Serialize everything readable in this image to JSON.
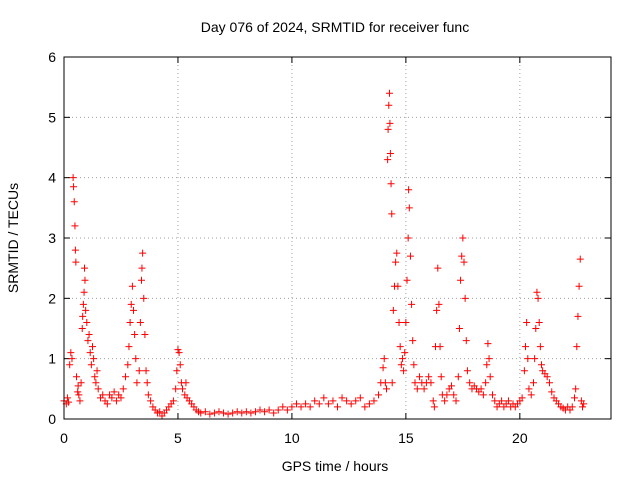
{
  "chart_data": {
    "type": "scatter",
    "title": "Day 076 of 2024, SRMTID for receiver func",
    "xlabel": "GPS time / hours",
    "ylabel": "SRMTID / TECUs",
    "xlim": [
      0,
      24
    ],
    "ylim": [
      0,
      6
    ],
    "xticks": [
      0,
      5,
      10,
      15,
      20
    ],
    "yticks": [
      0,
      1,
      2,
      3,
      4,
      5,
      6
    ],
    "grid": true,
    "marker": "plus",
    "color": "#ff0000",
    "series": [
      {
        "name": "SRMTID",
        "points": [
          [
            0.0,
            0.3
          ],
          [
            0.1,
            0.25
          ],
          [
            0.15,
            0.35
          ],
          [
            0.2,
            0.28
          ],
          [
            0.25,
            0.9
          ],
          [
            0.3,
            1.1
          ],
          [
            0.35,
            1.0
          ],
          [
            0.4,
            4.0
          ],
          [
            0.42,
            3.85
          ],
          [
            0.45,
            3.6
          ],
          [
            0.48,
            3.2
          ],
          [
            0.5,
            2.8
          ],
          [
            0.52,
            2.6
          ],
          [
            0.55,
            0.7
          ],
          [
            0.6,
            0.45
          ],
          [
            0.62,
            0.55
          ],
          [
            0.65,
            0.4
          ],
          [
            0.7,
            0.3
          ],
          [
            0.75,
            0.6
          ],
          [
            0.8,
            1.5
          ],
          [
            0.82,
            1.7
          ],
          [
            0.85,
            1.9
          ],
          [
            0.88,
            2.1
          ],
          [
            0.9,
            2.5
          ],
          [
            0.92,
            2.3
          ],
          [
            0.95,
            1.8
          ],
          [
            1.0,
            1.6
          ],
          [
            1.05,
            1.3
          ],
          [
            1.1,
            1.4
          ],
          [
            1.15,
            1.1
          ],
          [
            1.2,
            0.9
          ],
          [
            1.25,
            1.2
          ],
          [
            1.3,
            1.0
          ],
          [
            1.35,
            0.7
          ],
          [
            1.4,
            0.6
          ],
          [
            1.45,
            0.8
          ],
          [
            1.5,
            0.5
          ],
          [
            1.6,
            0.35
          ],
          [
            1.7,
            0.4
          ],
          [
            1.8,
            0.3
          ],
          [
            1.9,
            0.25
          ],
          [
            2.0,
            0.4
          ],
          [
            2.1,
            0.35
          ],
          [
            2.2,
            0.45
          ],
          [
            2.3,
            0.3
          ],
          [
            2.4,
            0.4
          ],
          [
            2.5,
            0.35
          ],
          [
            2.6,
            0.5
          ],
          [
            2.7,
            0.7
          ],
          [
            2.8,
            0.9
          ],
          [
            2.85,
            1.2
          ],
          [
            2.9,
            1.6
          ],
          [
            2.95,
            1.9
          ],
          [
            3.0,
            2.2
          ],
          [
            3.05,
            1.8
          ],
          [
            3.1,
            1.4
          ],
          [
            3.15,
            1.0
          ],
          [
            3.2,
            0.6
          ],
          [
            3.3,
            0.8
          ],
          [
            3.35,
            1.6
          ],
          [
            3.4,
            2.3
          ],
          [
            3.42,
            2.5
          ],
          [
            3.45,
            2.75
          ],
          [
            3.5,
            2.0
          ],
          [
            3.55,
            1.4
          ],
          [
            3.6,
            0.8
          ],
          [
            3.65,
            0.6
          ],
          [
            3.7,
            0.4
          ],
          [
            3.8,
            0.3
          ],
          [
            3.9,
            0.2
          ],
          [
            4.0,
            0.15
          ],
          [
            4.1,
            0.1
          ],
          [
            4.2,
            0.12
          ],
          [
            4.3,
            0.05
          ],
          [
            4.4,
            0.1
          ],
          [
            4.5,
            0.15
          ],
          [
            4.6,
            0.2
          ],
          [
            4.7,
            0.25
          ],
          [
            4.8,
            0.3
          ],
          [
            4.9,
            0.5
          ],
          [
            4.95,
            0.8
          ],
          [
            5.0,
            1.15
          ],
          [
            5.05,
            1.1
          ],
          [
            5.1,
            0.9
          ],
          [
            5.15,
            0.6
          ],
          [
            5.2,
            0.5
          ],
          [
            5.3,
            0.4
          ],
          [
            5.35,
            0.6
          ],
          [
            5.4,
            0.35
          ],
          [
            5.5,
            0.3
          ],
          [
            5.6,
            0.25
          ],
          [
            5.7,
            0.2
          ],
          [
            5.8,
            0.15
          ],
          [
            5.9,
            0.12
          ],
          [
            6.0,
            0.1
          ],
          [
            6.2,
            0.12
          ],
          [
            6.4,
            0.08
          ],
          [
            6.6,
            0.1
          ],
          [
            6.8,
            0.12
          ],
          [
            7.0,
            0.1
          ],
          [
            7.2,
            0.08
          ],
          [
            7.4,
            0.1
          ],
          [
            7.6,
            0.12
          ],
          [
            7.8,
            0.1
          ],
          [
            8.0,
            0.12
          ],
          [
            8.2,
            0.1
          ],
          [
            8.4,
            0.12
          ],
          [
            8.6,
            0.15
          ],
          [
            8.8,
            0.12
          ],
          [
            9.0,
            0.15
          ],
          [
            9.2,
            0.1
          ],
          [
            9.4,
            0.15
          ],
          [
            9.6,
            0.2
          ],
          [
            9.8,
            0.15
          ],
          [
            10.0,
            0.2
          ],
          [
            10.2,
            0.25
          ],
          [
            10.4,
            0.2
          ],
          [
            10.6,
            0.25
          ],
          [
            10.8,
            0.2
          ],
          [
            11.0,
            0.3
          ],
          [
            11.2,
            0.25
          ],
          [
            11.4,
            0.35
          ],
          [
            11.6,
            0.25
          ],
          [
            11.8,
            0.3
          ],
          [
            12.0,
            0.2
          ],
          [
            12.2,
            0.35
          ],
          [
            12.4,
            0.3
          ],
          [
            12.6,
            0.25
          ],
          [
            12.8,
            0.3
          ],
          [
            13.0,
            0.35
          ],
          [
            13.2,
            0.2
          ],
          [
            13.4,
            0.25
          ],
          [
            13.6,
            0.3
          ],
          [
            13.8,
            0.4
          ],
          [
            13.9,
            0.6
          ],
          [
            14.0,
            0.85
          ],
          [
            14.05,
            1.0
          ],
          [
            14.1,
            0.6
          ],
          [
            14.15,
            0.5
          ],
          [
            14.2,
            4.3
          ],
          [
            14.22,
            4.8
          ],
          [
            14.25,
            5.2
          ],
          [
            14.28,
            5.4
          ],
          [
            14.3,
            4.9
          ],
          [
            14.32,
            4.4
          ],
          [
            14.35,
            3.9
          ],
          [
            14.38,
            3.4
          ],
          [
            14.4,
            0.6
          ],
          [
            14.45,
            1.8
          ],
          [
            14.5,
            2.2
          ],
          [
            14.55,
            2.6
          ],
          [
            14.6,
            2.75
          ],
          [
            14.65,
            2.2
          ],
          [
            14.7,
            1.6
          ],
          [
            14.75,
            1.2
          ],
          [
            14.8,
            0.9
          ],
          [
            14.85,
            1.0
          ],
          [
            14.9,
            0.8
          ],
          [
            14.95,
            1.1
          ],
          [
            15.0,
            1.6
          ],
          [
            15.05,
            2.3
          ],
          [
            15.1,
            3.0
          ],
          [
            15.12,
            3.8
          ],
          [
            15.15,
            3.5
          ],
          [
            15.2,
            2.7
          ],
          [
            15.25,
            1.9
          ],
          [
            15.3,
            1.3
          ],
          [
            15.35,
            0.9
          ],
          [
            15.4,
            0.6
          ],
          [
            15.5,
            0.5
          ],
          [
            15.6,
            0.7
          ],
          [
            15.7,
            0.6
          ],
          [
            15.8,
            0.5
          ],
          [
            15.9,
            0.6
          ],
          [
            16.0,
            0.7
          ],
          [
            16.1,
            0.6
          ],
          [
            16.2,
            0.3
          ],
          [
            16.25,
            0.2
          ],
          [
            16.3,
            1.2
          ],
          [
            16.35,
            1.8
          ],
          [
            16.4,
            2.5
          ],
          [
            16.45,
            1.9
          ],
          [
            16.5,
            1.2
          ],
          [
            16.55,
            0.7
          ],
          [
            16.6,
            0.4
          ],
          [
            16.7,
            0.3
          ],
          [
            16.8,
            0.4
          ],
          [
            16.9,
            0.5
          ],
          [
            17.0,
            0.55
          ],
          [
            17.1,
            0.4
          ],
          [
            17.2,
            0.3
          ],
          [
            17.3,
            0.7
          ],
          [
            17.35,
            1.5
          ],
          [
            17.4,
            2.3
          ],
          [
            17.45,
            2.7
          ],
          [
            17.5,
            3.0
          ],
          [
            17.55,
            2.6
          ],
          [
            17.6,
            2.0
          ],
          [
            17.65,
            1.3
          ],
          [
            17.7,
            0.8
          ],
          [
            17.8,
            0.6
          ],
          [
            17.9,
            0.5
          ],
          [
            18.0,
            0.55
          ],
          [
            18.1,
            0.5
          ],
          [
            18.2,
            0.45
          ],
          [
            18.3,
            0.5
          ],
          [
            18.4,
            0.4
          ],
          [
            18.5,
            0.6
          ],
          [
            18.55,
            0.9
          ],
          [
            18.6,
            1.25
          ],
          [
            18.65,
            1.0
          ],
          [
            18.7,
            0.7
          ],
          [
            18.8,
            0.4
          ],
          [
            18.9,
            0.3
          ],
          [
            19.0,
            0.2
          ],
          [
            19.1,
            0.25
          ],
          [
            19.2,
            0.3
          ],
          [
            19.3,
            0.2
          ],
          [
            19.4,
            0.25
          ],
          [
            19.5,
            0.3
          ],
          [
            19.6,
            0.2
          ],
          [
            19.7,
            0.25
          ],
          [
            19.8,
            0.2
          ],
          [
            19.9,
            0.25
          ],
          [
            20.0,
            0.3
          ],
          [
            20.1,
            0.35
          ],
          [
            20.2,
            0.8
          ],
          [
            20.25,
            1.2
          ],
          [
            20.3,
            1.6
          ],
          [
            20.35,
            1.0
          ],
          [
            20.4,
            0.5
          ],
          [
            20.5,
            0.4
          ],
          [
            20.6,
            0.6
          ],
          [
            20.65,
            1.0
          ],
          [
            20.7,
            1.5
          ],
          [
            20.75,
            2.1
          ],
          [
            20.8,
            2.0
          ],
          [
            20.85,
            1.6
          ],
          [
            20.9,
            1.2
          ],
          [
            20.95,
            0.9
          ],
          [
            21.0,
            0.8
          ],
          [
            21.1,
            0.75
          ],
          [
            21.2,
            0.7
          ],
          [
            21.3,
            0.6
          ],
          [
            21.4,
            0.45
          ],
          [
            21.5,
            0.35
          ],
          [
            21.6,
            0.3
          ],
          [
            21.7,
            0.25
          ],
          [
            21.8,
            0.2
          ],
          [
            21.9,
            0.18
          ],
          [
            22.0,
            0.15
          ],
          [
            22.1,
            0.2
          ],
          [
            22.2,
            0.15
          ],
          [
            22.3,
            0.2
          ],
          [
            22.4,
            0.35
          ],
          [
            22.45,
            0.5
          ],
          [
            22.5,
            1.2
          ],
          [
            22.55,
            1.7
          ],
          [
            22.6,
            2.2
          ],
          [
            22.65,
            2.65
          ],
          [
            22.7,
            0.3
          ],
          [
            22.75,
            0.2
          ],
          [
            22.8,
            0.25
          ]
        ]
      }
    ]
  }
}
